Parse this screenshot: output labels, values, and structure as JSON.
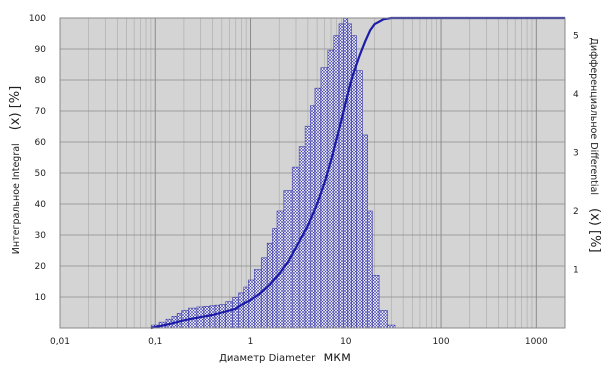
{
  "chart_data": {
    "type": "bar+line",
    "x_scale": "log",
    "xlim": [
      0.01,
      2000
    ],
    "x_ticks": [
      "0,01",
      "0,1",
      "1",
      "10",
      "100",
      "1000"
    ],
    "xlabel": "Диаметр Diameter",
    "xlabel_unit": "мкм",
    "left_axis": {
      "label_text": "Интегральное Integral",
      "label_symbol": "(x) [%]",
      "ylim": [
        0,
        100
      ],
      "ticks": [
        "10",
        "20",
        "30",
        "40",
        "50",
        "60",
        "70",
        "80",
        "90",
        "100"
      ]
    },
    "right_axis": {
      "label_text": "Дифференциальное Differential",
      "label_symbol": "(x) [%]",
      "ylim": [
        0,
        5.3
      ],
      "ticks": [
        "1",
        "2",
        "3",
        "4",
        "5"
      ]
    },
    "series": [
      {
        "kind": "histogram",
        "axis": "right",
        "x": [
          0.1,
          0.12,
          0.14,
          0.16,
          0.18,
          0.2,
          0.25,
          0.3,
          0.35,
          0.4,
          0.45,
          0.5,
          0.6,
          0.7,
          0.8,
          0.9,
          1.0,
          1.2,
          1.4,
          1.6,
          1.8,
          2.0,
          2.5,
          3.0,
          3.5,
          4.0,
          4.5,
          5.0,
          6.0,
          7.0,
          8.0,
          9.0,
          10.0,
          11.0,
          12.0,
          14.0,
          16.0,
          18.0,
          20.0,
          25.0,
          30.0
        ],
        "values": [
          0.05,
          0.1,
          0.15,
          0.2,
          0.25,
          0.3,
          0.34,
          0.36,
          0.37,
          0.38,
          0.39,
          0.4,
          0.45,
          0.52,
          0.6,
          0.7,
          0.82,
          1.0,
          1.2,
          1.45,
          1.7,
          2.0,
          2.35,
          2.75,
          3.1,
          3.45,
          3.8,
          4.1,
          4.45,
          4.75,
          5.0,
          5.2,
          5.3,
          5.2,
          5.0,
          4.4,
          3.3,
          2.0,
          0.9,
          0.3,
          0.05
        ]
      },
      {
        "kind": "line",
        "axis": "left",
        "x": [
          0.09,
          0.1,
          0.12,
          0.15,
          0.2,
          0.3,
          0.4,
          0.5,
          0.7,
          0.8,
          1.0,
          1.3,
          1.6,
          2.0,
          2.5,
          3.0,
          4.0,
          5.0,
          6.0,
          7.0,
          8.0,
          9.0,
          10.0,
          11.0,
          12.0,
          14.0,
          16.0,
          18.0,
          20.0,
          25.0,
          30.0,
          2000.0
        ],
        "values": [
          0,
          0.3,
          0.8,
          1.5,
          2.5,
          3.5,
          4.2,
          5.0,
          6.2,
          7.5,
          9.0,
          11.5,
          14.0,
          17.5,
          21.5,
          26.0,
          33.0,
          40.0,
          47.0,
          54.0,
          61.0,
          67.0,
          73.0,
          78.0,
          82.0,
          88.0,
          92.5,
          96.0,
          98.0,
          99.6,
          100,
          100
        ]
      }
    ],
    "colors": {
      "plot_bg": "#d4d4d4",
      "grid": "#a8a8a8",
      "bars": "#3a3aa8",
      "line": "#1c1ca8"
    }
  }
}
